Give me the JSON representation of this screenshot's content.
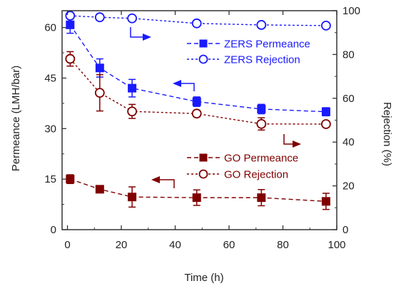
{
  "chart_data": {
    "type": "line",
    "xlabel": "Time (h)",
    "ylabel_left": "Permeance (LMH/bar)",
    "ylabel_right": "Rejection (%)",
    "xlim": [
      -2,
      100
    ],
    "ylim_left": [
      0,
      65
    ],
    "ylim_right": [
      0,
      100
    ],
    "xticks": [
      0,
      20,
      40,
      60,
      80,
      100
    ],
    "yticks_left": [
      0,
      15,
      30,
      45,
      60
    ],
    "yticks_right": [
      0,
      20,
      40,
      60,
      80,
      100
    ],
    "grid": false,
    "legend_placement": "right",
    "series": [
      {
        "name": "ZERS Permeance",
        "axis": "left",
        "color": "#1a1aff",
        "marker": "filled-square",
        "x": [
          1,
          12,
          24,
          48,
          72,
          96
        ],
        "y": [
          60.8,
          48.0,
          42.0,
          38.0,
          35.8,
          35.0
        ],
        "err": [
          2.5,
          2.7,
          2.6,
          1.4,
          1.4,
          1.2
        ]
      },
      {
        "name": "ZERS Rejection",
        "axis": "right",
        "color": "#1a1aff",
        "marker": "open-circle",
        "x": [
          1,
          12,
          24,
          48,
          72,
          96
        ],
        "y": [
          97.7,
          97.0,
          96.5,
          94.2,
          93.5,
          93.2
        ],
        "err": [
          0,
          0,
          0,
          0,
          0,
          0
        ]
      },
      {
        "name": "GO Permeance",
        "axis": "left",
        "color": "#800000",
        "marker": "filled-square",
        "x": [
          1,
          12,
          24,
          48,
          72,
          96
        ],
        "y": [
          15.0,
          12.0,
          9.7,
          9.5,
          9.5,
          8.4
        ],
        "err": [
          1.3,
          0.8,
          3.0,
          2.3,
          2.4,
          2.4
        ]
      },
      {
        "name": "GO Rejection",
        "axis": "right",
        "color": "#800000",
        "marker": "open-circle",
        "x": [
          1,
          12,
          24,
          48,
          72,
          96
        ],
        "y": [
          78.0,
          62.5,
          54.0,
          53.0,
          48.3,
          48.2
        ],
        "err": [
          3.3,
          8.3,
          3.2,
          1.5,
          2.8,
          1.3
        ]
      }
    ]
  }
}
